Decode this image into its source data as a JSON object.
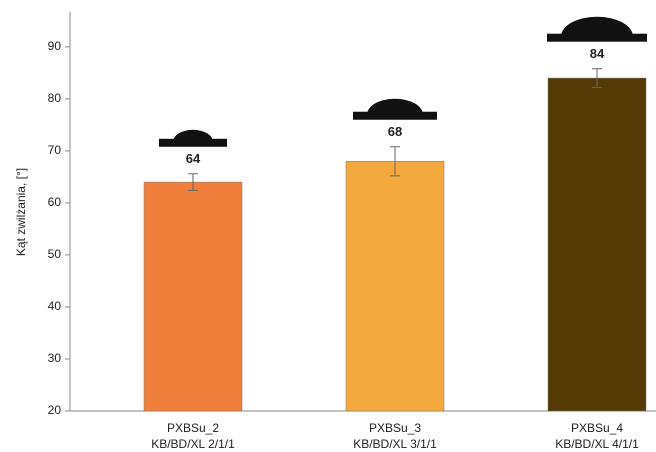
{
  "chart_data": {
    "type": "bar",
    "y_label": "Kąt zwilżania, [°]",
    "categories": [
      [
        "PXBSu_2",
        "KB/BD/XL 2/1/1"
      ],
      [
        "PXBSu_3",
        "KB/BD/XL 3/1/1"
      ],
      [
        "PXBSu_4",
        "KB/BD/XL 4/1/1"
      ]
    ],
    "values": [
      64,
      68,
      84
    ],
    "errors": [
      1.6,
      2.8,
      1.8
    ],
    "colors": [
      "#f07f3c",
      "#f4a93f",
      "#553a06"
    ],
    "ylim": [
      20,
      96.7
    ],
    "yticks": [
      20,
      30,
      40,
      50,
      60,
      70,
      80,
      90
    ],
    "grid": false
  }
}
